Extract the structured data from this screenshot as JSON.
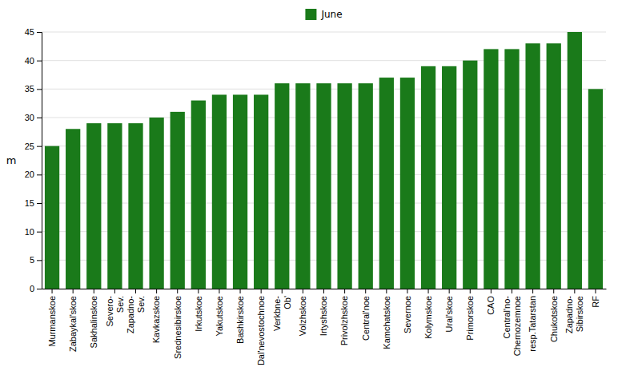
{
  "chart_data": {
    "type": "bar",
    "categories": [
      "Murmanskoe",
      "Zabaykal'skoe",
      "Sakhalinskoe",
      "Severo-\nSev.",
      "Zapadno-\nSev.",
      "Kavkazskoe",
      "Srednesibirskoe",
      "Irkutskoe",
      "Yakutskoe",
      "Bashkirskoe",
      "Dal'nevostochnoe",
      "Verkbne-\nOb'",
      "Volzhskoe",
      "Irtyshskoe",
      "Privolzhskoe",
      "Central'noe",
      "Kamchatskoe",
      "Severnoe",
      "Kolymskoe",
      "Ural'skoe",
      "Primorskoe",
      "CAO",
      "Central'no-\nChernozemnoe",
      "resp.Tatarstan",
      "Chukotskoe",
      "Zapadno-\nSibirskoe",
      "RF"
    ],
    "series": [
      {
        "name": "June",
        "color": "#1a7a1a",
        "values": [
          25,
          28,
          29,
          29,
          29,
          30,
          31,
          33,
          34,
          34,
          34,
          36,
          36,
          36,
          36,
          36,
          37,
          37,
          39,
          39,
          40,
          42,
          42,
          43,
          43,
          45,
          35
        ]
      }
    ],
    "ylabel": "m",
    "ylim": [
      0,
      45
    ],
    "yticks": [
      0,
      5,
      10,
      15,
      20,
      25,
      30,
      35,
      40,
      45
    ],
    "grid": true,
    "legend": "top"
  }
}
